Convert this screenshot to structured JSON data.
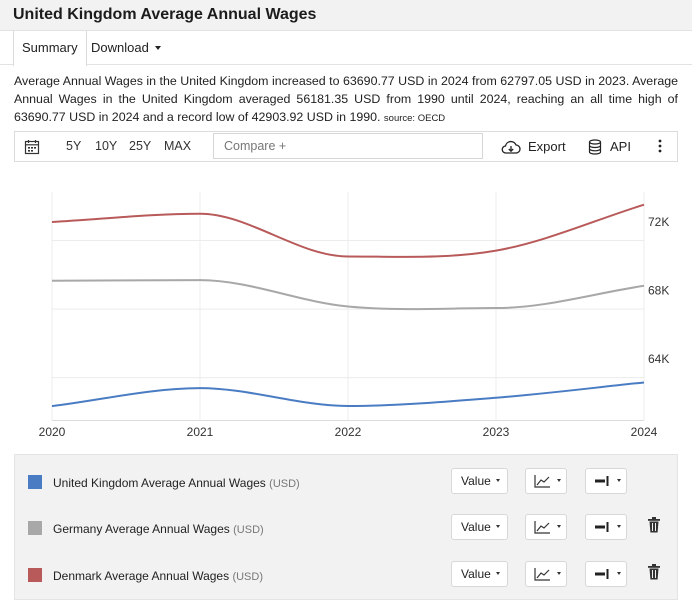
{
  "page": {
    "title": "United Kingdom Average Annual Wages"
  },
  "tabs": {
    "summary": "Summary",
    "download": "Download"
  },
  "description": {
    "text": "Average Annual Wages in the United Kingdom increased to 63690.77 USD in 2024 from 62797.05 USD in 2023. Average Annual Wages in the United Kingdom averaged 56181.35 USD from 1990 until 2024, reaching an all time high of 63690.77 USD in 2024 and a record low of 42903.92 USD in 1990.",
    "source": "source: OECD"
  },
  "toolbar": {
    "calendar_icon": "calendar-icon",
    "ranges": [
      "5Y",
      "10Y",
      "25Y",
      "MAX"
    ],
    "compare_placeholder": "Compare +",
    "export_label": "Export",
    "export_icon": "cloud-download-icon",
    "api_label": "API",
    "api_icon": "database-icon",
    "more_icon": "more-vertical-icon"
  },
  "chart_data": {
    "type": "line",
    "x": [
      "2020",
      "2021",
      "2022",
      "2023",
      "2024"
    ],
    "ytick_labels": [
      "64K",
      "68K",
      "72K"
    ],
    "ylim": [
      61500,
      74800
    ],
    "y_axis_position": "right",
    "grid": true,
    "series": [
      {
        "name": "United Kingdom Average Annual Wages",
        "color": "#4a7cc3",
        "values": [
          62310,
          63360,
          62320,
          62797.05,
          63690.77
        ]
      },
      {
        "name": "Germany Average Annual Wages",
        "color": "#a8a8a8",
        "values": [
          69620,
          69660,
          68120,
          68030,
          69330
        ]
      },
      {
        "name": "Denmark Average Annual Wages",
        "color": "#b95a5a",
        "values": [
          73050,
          73530,
          71040,
          71380,
          74060
        ]
      }
    ]
  },
  "legend": {
    "items": [
      {
        "label": "United Kingdom Average Annual Wages",
        "unit": "(USD)",
        "color": "#4a7cc3",
        "value_label": "Value",
        "deletable": false
      },
      {
        "label": "Germany Average Annual Wages",
        "unit": "(USD)",
        "color": "#a8a8a8",
        "value_label": "Value",
        "deletable": true
      },
      {
        "label": "Denmark Average Annual Wages",
        "unit": "(USD)",
        "color": "#b95a5a",
        "value_label": "Value",
        "deletable": true
      }
    ],
    "chart_type_icon": "line-chart-icon",
    "axis_icon": "axis-right-icon",
    "delete_icon": "trash-icon"
  }
}
